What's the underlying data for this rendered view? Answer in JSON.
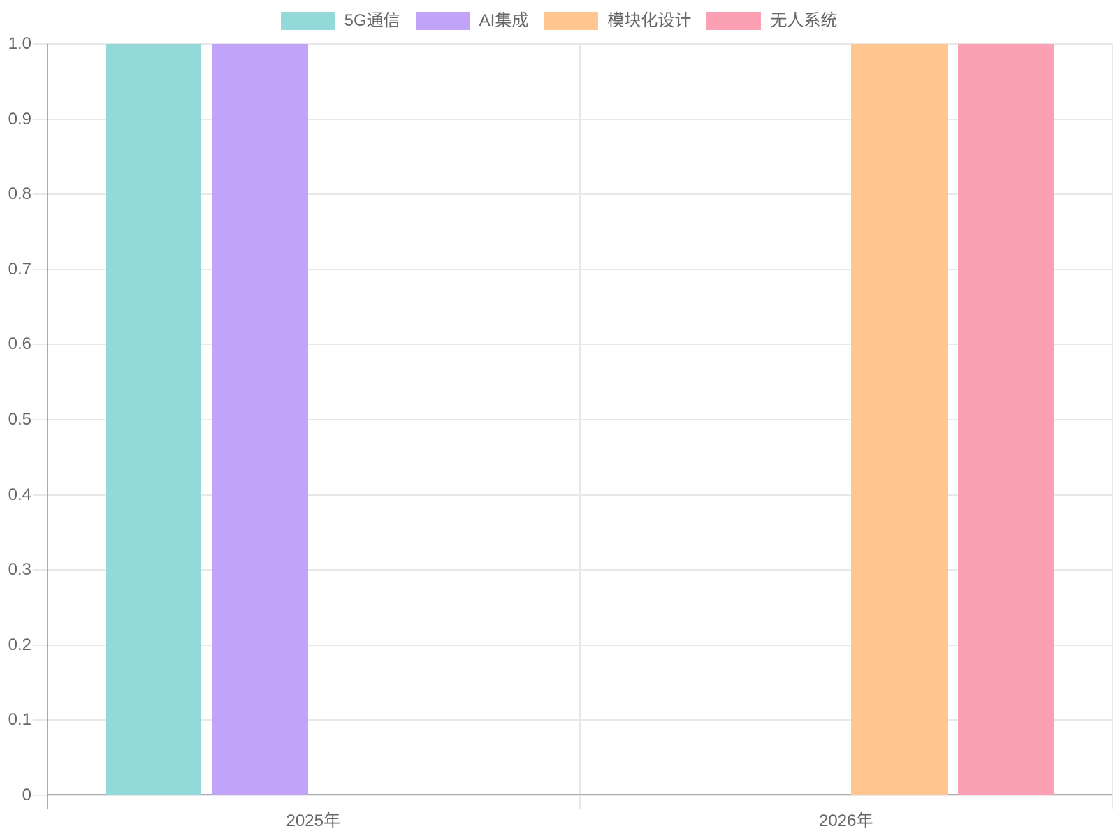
{
  "chart_data": {
    "type": "bar",
    "title": "",
    "xlabel": "",
    "ylabel": "",
    "categories": [
      "2025年",
      "2026年"
    ],
    "series": [
      {
        "name": "5G通信",
        "color": "#93D9D9",
        "values": [
          1,
          null
        ]
      },
      {
        "name": "AI集成",
        "color": "#C1A3FA",
        "values": [
          1,
          null
        ]
      },
      {
        "name": "模块化设计",
        "color": "#FFC78F",
        "values": [
          null,
          1
        ]
      },
      {
        "name": "无人系统",
        "color": "#FCA0B4",
        "values": [
          null,
          1
        ]
      }
    ],
    "ylim": [
      0,
      1.0
    ],
    "yticks": [
      0,
      0.1,
      0.2,
      0.3,
      0.4,
      0.5,
      0.6,
      0.7,
      0.8,
      0.9,
      1.0
    ],
    "ytick_labels": [
      "0",
      "0.1",
      "0.2",
      "0.3",
      "0.4",
      "0.5",
      "0.6",
      "0.7",
      "0.8",
      "0.9",
      "1.0"
    ],
    "legend_position": "top",
    "grid": true,
    "bar_group_percentage": 0.8,
    "bar_percentage": 0.9,
    "colors": {
      "grid": "#e8e8e8",
      "axis": "#ababab",
      "tick_text": "#666666",
      "background": "#ffffff"
    }
  }
}
